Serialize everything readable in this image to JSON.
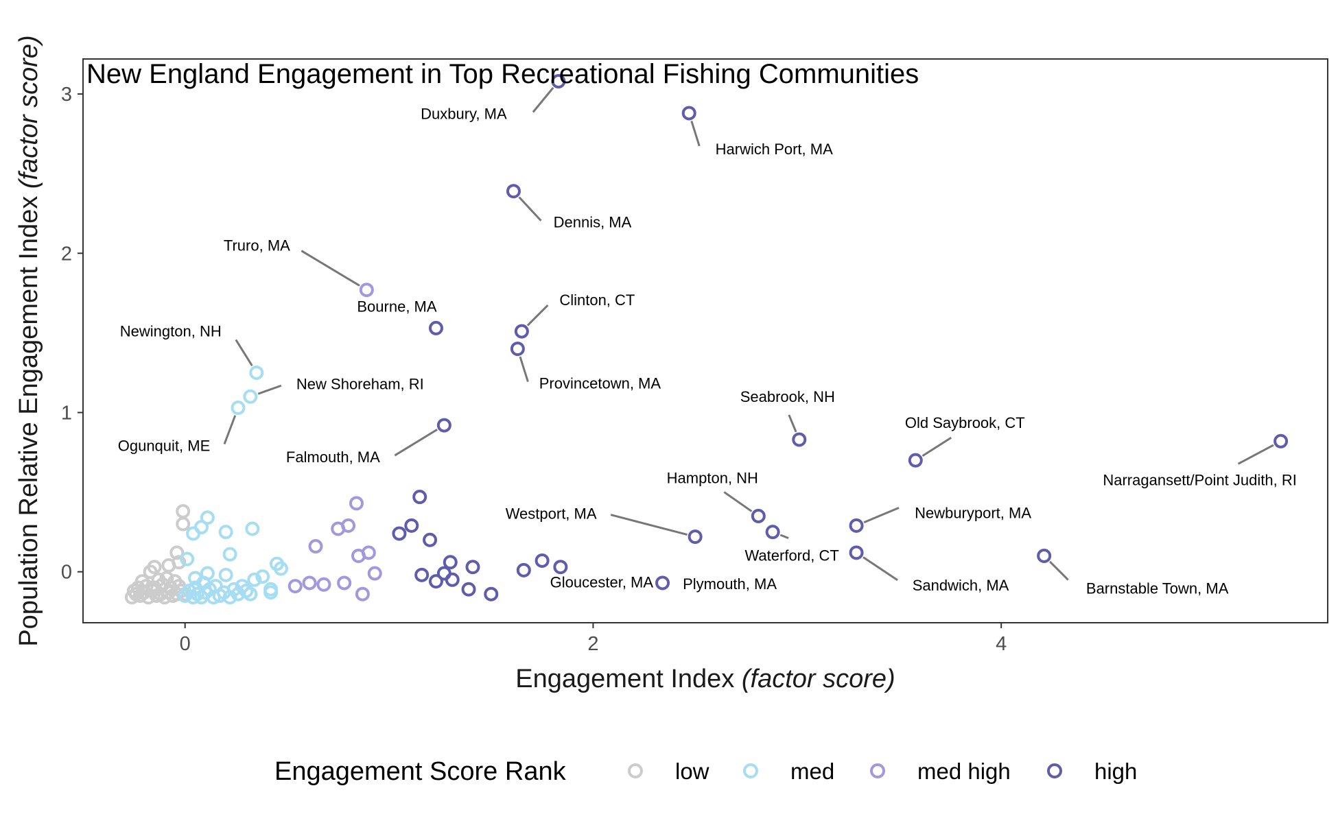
{
  "chart_data": {
    "type": "scatter",
    "title": "New England Engagement in Top Recreational Fishing Communities",
    "xlabel": {
      "main": "Engagement Index ",
      "italic": "(factor score)"
    },
    "ylabel": {
      "main": "Population Relative Engagement Index ",
      "italic": "(factor score)"
    },
    "xlim": [
      -0.5,
      5.6
    ],
    "ylim": [
      -0.32,
      3.22
    ],
    "x_ticks": [
      0,
      2,
      4
    ],
    "y_ticks": [
      0,
      1,
      2,
      3
    ],
    "grid": false,
    "legend": {
      "title": "Engagement Score Rank",
      "position": "bottom",
      "entries": [
        {
          "key": "low",
          "label": "low",
          "color": "#cccccc"
        },
        {
          "key": "med",
          "label": "med",
          "color": "#a6ddf2"
        },
        {
          "key": "medhigh",
          "label": "med high",
          "color": "#a398de"
        },
        {
          "key": "high",
          "label": "high",
          "color": "#5e5cad"
        }
      ]
    },
    "labeled_points": [
      {
        "name": "Duxbury, MA",
        "x": 1.83,
        "y": 3.08,
        "rank": "high"
      },
      {
        "name": "Harwich Port, MA",
        "x": 2.47,
        "y": 2.88,
        "rank": "high"
      },
      {
        "name": "Dennis, MA",
        "x": 1.61,
        "y": 2.39,
        "rank": "high"
      },
      {
        "name": "Truro, MA",
        "x": 0.89,
        "y": 1.77,
        "rank": "medhigh"
      },
      {
        "name": "Bourne, MA",
        "x": 1.23,
        "y": 1.53,
        "rank": "high"
      },
      {
        "name": "Clinton, CT",
        "x": 1.65,
        "y": 1.51,
        "rank": "high"
      },
      {
        "name": "Provincetown, MA",
        "x": 1.63,
        "y": 1.4,
        "rank": "high"
      },
      {
        "name": "Newington, NH",
        "x": 0.35,
        "y": 1.25,
        "rank": "med"
      },
      {
        "name": "New Shoreham, RI",
        "x": 0.32,
        "y": 1.1,
        "rank": "med"
      },
      {
        "name": "Ogunquit, ME",
        "x": 0.26,
        "y": 1.03,
        "rank": "med"
      },
      {
        "name": "Falmouth, MA",
        "x": 1.27,
        "y": 0.92,
        "rank": "high"
      },
      {
        "name": "Seabrook, NH",
        "x": 3.01,
        "y": 0.83,
        "rank": "high"
      },
      {
        "name": "Old Saybrook, CT",
        "x": 3.58,
        "y": 0.7,
        "rank": "high"
      },
      {
        "name": "Narragansett/Point Judith, RI",
        "x": 5.37,
        "y": 0.82,
        "rank": "high"
      },
      {
        "name": "Hampton, NH",
        "x": 2.81,
        "y": 0.35,
        "rank": "high"
      },
      {
        "name": "Newburyport, MA",
        "x": 3.29,
        "y": 0.29,
        "rank": "high"
      },
      {
        "name": "Westport, MA",
        "x": 2.5,
        "y": 0.22,
        "rank": "high"
      },
      {
        "name": "Waterford, CT",
        "x": 2.88,
        "y": 0.25,
        "rank": "high"
      },
      {
        "name": "Sandwich, MA",
        "x": 3.29,
        "y": 0.12,
        "rank": "high"
      },
      {
        "name": "Barnstable Town, MA",
        "x": 4.21,
        "y": 0.1,
        "rank": "high"
      },
      {
        "name": "Gloucester, MA",
        "x": 1.84,
        "y": 0.03,
        "rank": "high"
      },
      {
        "name": "Plymouth, MA",
        "x": 2.34,
        "y": -0.07,
        "rank": "high"
      }
    ],
    "points": {
      "low": [
        [
          -0.26,
          -0.16
        ],
        [
          -0.24,
          -0.14
        ],
        [
          -0.22,
          -0.15
        ],
        [
          -0.2,
          -0.13
        ],
        [
          -0.18,
          -0.16
        ],
        [
          -0.16,
          -0.12
        ],
        [
          -0.14,
          -0.15
        ],
        [
          -0.12,
          -0.14
        ],
        [
          -0.1,
          -0.16
        ],
        [
          -0.08,
          -0.13
        ],
        [
          -0.06,
          -0.15
        ],
        [
          -0.04,
          -0.14
        ],
        [
          -0.02,
          -0.12
        ],
        [
          -0.23,
          -0.1
        ],
        [
          -0.19,
          -0.09
        ],
        [
          -0.15,
          -0.1
        ],
        [
          -0.11,
          -0.08
        ],
        [
          -0.07,
          -0.1
        ],
        [
          -0.03,
          -0.09
        ],
        [
          -0.21,
          -0.06
        ],
        [
          -0.13,
          -0.05
        ],
        [
          -0.05,
          -0.06
        ],
        [
          -0.17,
          0.0
        ],
        [
          -0.15,
          0.03
        ],
        [
          -0.08,
          0.04
        ],
        [
          -0.03,
          0.06
        ],
        [
          -0.04,
          0.12
        ],
        [
          -0.01,
          0.3
        ],
        [
          -0.01,
          0.38
        ],
        [
          -0.09,
          -0.04
        ],
        [
          -0.25,
          -0.12
        ],
        [
          0.0,
          -0.14
        ]
      ],
      "med": [
        [
          0.0,
          -0.15
        ],
        [
          0.02,
          -0.12
        ],
        [
          0.04,
          -0.16
        ],
        [
          0.05,
          -0.1
        ],
        [
          0.06,
          -0.14
        ],
        [
          0.08,
          -0.16
        ],
        [
          0.09,
          -0.07
        ],
        [
          0.1,
          -0.13
        ],
        [
          0.12,
          -0.11
        ],
        [
          0.14,
          -0.16
        ],
        [
          0.15,
          -0.09
        ],
        [
          0.17,
          -0.15
        ],
        [
          0.19,
          -0.13
        ],
        [
          0.2,
          -0.02
        ],
        [
          0.22,
          -0.16
        ],
        [
          0.24,
          -0.11
        ],
        [
          0.26,
          -0.14
        ],
        [
          0.28,
          -0.09
        ],
        [
          0.3,
          -0.12
        ],
        [
          0.32,
          -0.14
        ],
        [
          0.34,
          -0.05
        ],
        [
          0.38,
          -0.03
        ],
        [
          0.42,
          -0.11
        ],
        [
          0.42,
          -0.13
        ],
        [
          0.45,
          0.05
        ],
        [
          0.47,
          0.02
        ],
        [
          0.01,
          0.08
        ],
        [
          0.05,
          -0.04
        ],
        [
          0.11,
          -0.01
        ],
        [
          0.22,
          0.11
        ],
        [
          0.04,
          0.24
        ],
        [
          0.08,
          0.28
        ],
        [
          0.11,
          0.34
        ],
        [
          0.2,
          0.25
        ],
        [
          0.33,
          0.27
        ]
      ],
      "medhigh": [
        [
          0.54,
          -0.09
        ],
        [
          0.61,
          -0.07
        ],
        [
          0.68,
          -0.08
        ],
        [
          0.78,
          -0.07
        ],
        [
          0.87,
          -0.14
        ],
        [
          0.93,
          -0.01
        ],
        [
          0.64,
          0.16
        ],
        [
          0.85,
          0.1
        ],
        [
          0.9,
          0.12
        ],
        [
          0.75,
          0.27
        ],
        [
          0.8,
          0.29
        ],
        [
          0.84,
          0.43
        ]
      ],
      "high": [
        [
          1.05,
          0.24
        ],
        [
          1.11,
          0.29
        ],
        [
          1.15,
          0.47
        ],
        [
          1.2,
          0.2
        ],
        [
          1.16,
          -0.02
        ],
        [
          1.23,
          -0.06
        ],
        [
          1.27,
          -0.01
        ],
        [
          1.3,
          0.06
        ],
        [
          1.31,
          -0.05
        ],
        [
          1.39,
          -0.11
        ],
        [
          1.41,
          0.03
        ],
        [
          1.5,
          -0.14
        ],
        [
          1.66,
          0.01
        ],
        [
          1.75,
          0.07
        ]
      ]
    }
  }
}
